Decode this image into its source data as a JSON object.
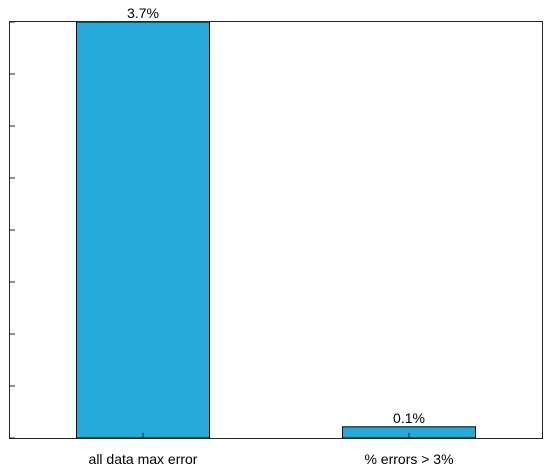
{
  "chart_data": {
    "type": "bar",
    "categories": [
      "all data max error",
      "% errors > 3%"
    ],
    "values": [
      3.7,
      0.1
    ],
    "data_labels": [
      "3.7%",
      "0.1%"
    ],
    "title": "",
    "xlabel": "",
    "ylabel": "",
    "ylim": [
      0,
      3.7
    ],
    "y_tick_labels_visible": false,
    "grid": false,
    "legend": "none",
    "bar_color": "#26AAD9",
    "bar_edge_color": "#000000"
  }
}
